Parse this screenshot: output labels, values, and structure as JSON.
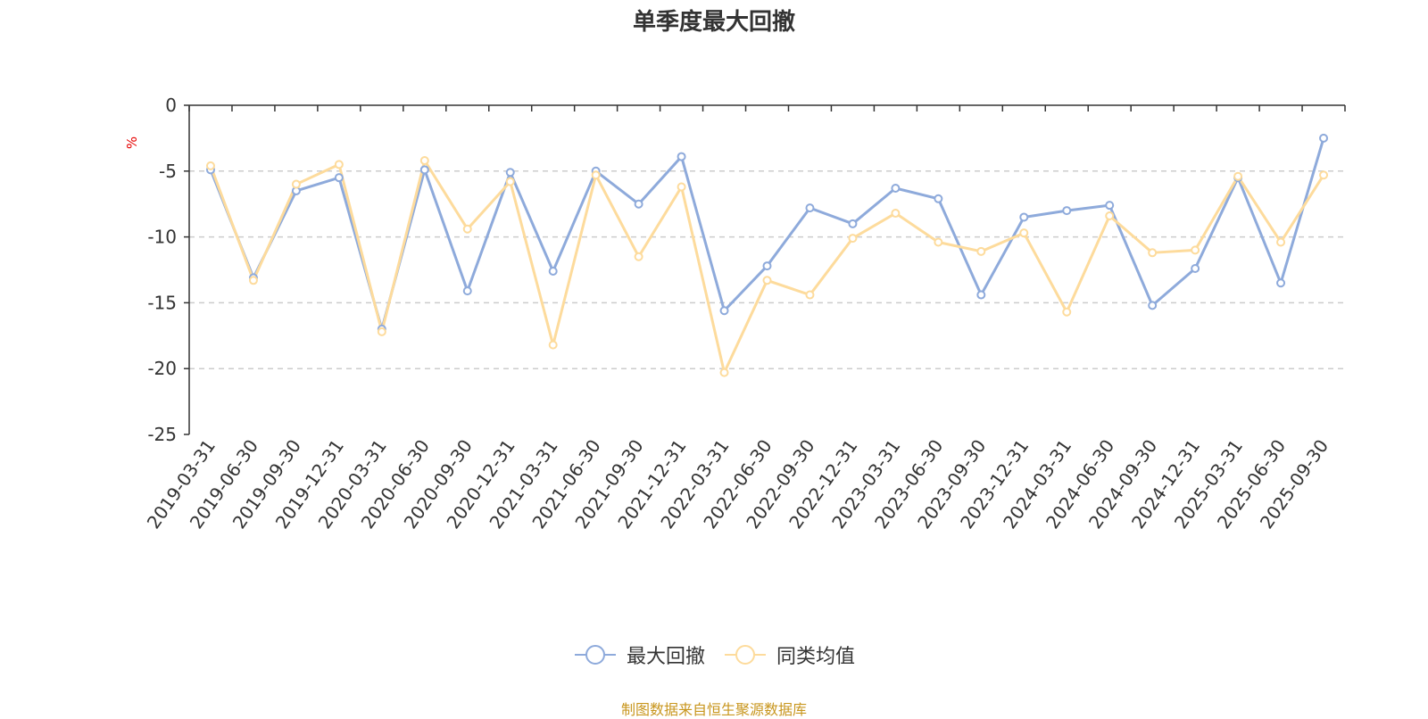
{
  "chart_data": {
    "type": "line",
    "title": "单季度最大回撤",
    "ylabel": "%",
    "ylim": [
      -25,
      0
    ],
    "yticks": [
      0,
      -5,
      -10,
      -15,
      -20,
      -25
    ],
    "grid": true,
    "legend_position": "bottom-center",
    "x": [
      "2019-03-31",
      "2019-06-30",
      "2019-09-30",
      "2019-12-31",
      "2020-03-31",
      "2020-06-30",
      "2020-09-30",
      "2020-12-31",
      "2021-03-31",
      "2021-06-30",
      "2021-09-30",
      "2021-12-31",
      "2022-03-31",
      "2022-06-30",
      "2022-09-30",
      "2022-12-31",
      "2023-03-31",
      "2023-06-30",
      "2023-09-30",
      "2023-12-31",
      "2024-03-31",
      "2024-06-30",
      "2024-09-30",
      "2024-12-31",
      "2025-03-31",
      "2025-06-30",
      "2025-09-30"
    ],
    "series": [
      {
        "name": "最大回撤",
        "color": "#8eaadb",
        "values": [
          -4.9,
          -13.1,
          -6.5,
          -5.5,
          -17.0,
          -4.9,
          -14.1,
          -5.1,
          -12.6,
          -5.0,
          -7.5,
          -3.9,
          -15.6,
          -12.2,
          -7.8,
          -9.0,
          -6.3,
          -7.1,
          -14.4,
          -8.5,
          -8.0,
          -7.6,
          -15.2,
          -12.4,
          -5.5,
          -13.5,
          -2.5
        ]
      },
      {
        "name": "同类均值",
        "color": "#fddb9c",
        "values": [
          -4.6,
          -13.3,
          -6.0,
          -4.5,
          -17.2,
          -4.2,
          -9.4,
          -5.8,
          -18.2,
          -5.3,
          -11.5,
          -6.2,
          -20.3,
          -13.3,
          -14.4,
          -10.1,
          -8.2,
          -10.4,
          -11.1,
          -9.7,
          -15.7,
          -8.4,
          -11.2,
          -11.0,
          -5.4,
          -10.4,
          -5.3
        ]
      }
    ]
  },
  "source_note": "制图数据来自恒生聚源数据库"
}
